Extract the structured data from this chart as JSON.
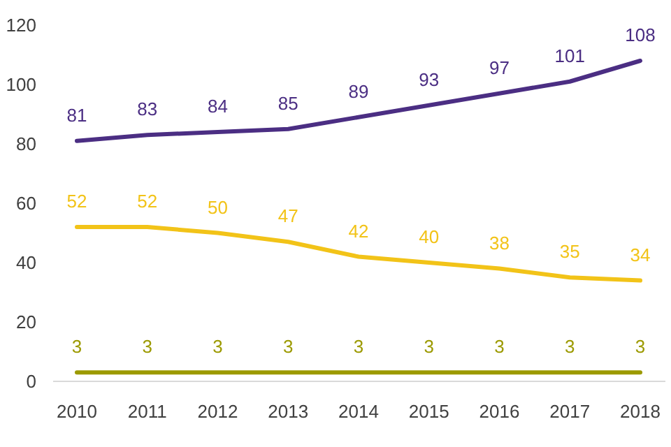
{
  "chart_data": {
    "type": "line",
    "categories": [
      "2010",
      "2011",
      "2012",
      "2013",
      "2014",
      "2015",
      "2016",
      "2017",
      "2018"
    ],
    "ylim": [
      0,
      120
    ],
    "yticks": [
      0,
      20,
      40,
      60,
      80,
      100,
      120
    ],
    "grid": false,
    "data_labels": true,
    "marker": "none",
    "line_style": "solid",
    "series": [
      {
        "color": "#4b2e83",
        "values": [
          81,
          83,
          84,
          85,
          89,
          93,
          97,
          101,
          108
        ]
      },
      {
        "color": "#f2c318",
        "values": [
          52,
          52,
          50,
          47,
          42,
          40,
          38,
          35,
          34
        ]
      },
      {
        "color": "#9c9a00",
        "values": [
          3,
          3,
          3,
          3,
          3,
          3,
          3,
          3,
          3
        ]
      }
    ]
  }
}
